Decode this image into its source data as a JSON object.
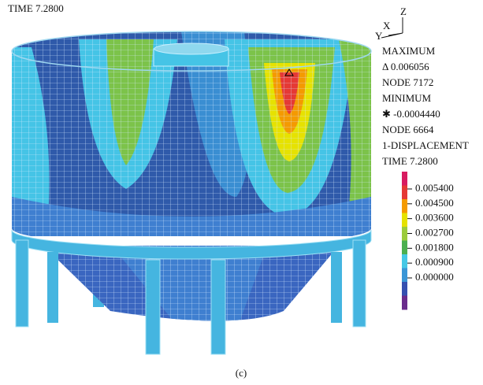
{
  "header": {
    "time": "TIME 7.2800"
  },
  "triad": {
    "z": "Z",
    "x": "X",
    "y": "Y"
  },
  "info": [
    "MAXIMUM",
    "Δ 0.006056",
    "NODE 7172",
    "MINIMUM",
    "✱ -0.0004440",
    "NODE 6664",
    "1-DISPLACEMENT",
    "TIME 7.2800"
  ],
  "legend": {
    "labels": [
      "0.005400",
      "0.004500",
      "0.003600",
      "0.002700",
      "0.001800",
      "0.000900",
      "0.000000"
    ],
    "colors": [
      "#d81b60",
      "#e53935",
      "#f49a00",
      "#e6e200",
      "#9ccc3c",
      "#4caf50",
      "#45c8e6",
      "#3a96d6",
      "#3550b0",
      "#6a2c8c"
    ]
  },
  "caption": "(c)"
}
